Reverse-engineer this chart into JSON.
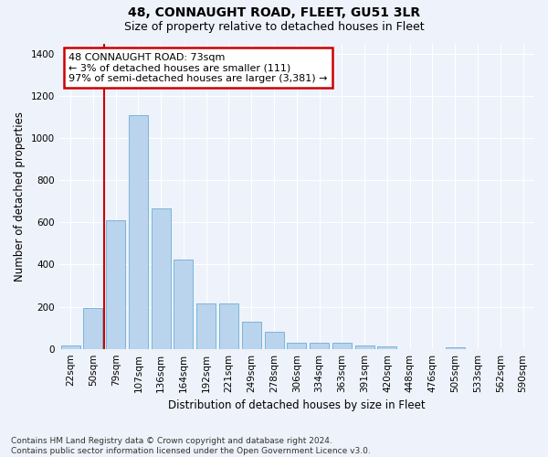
{
  "title": "48, CONNAUGHT ROAD, FLEET, GU51 3LR",
  "subtitle": "Size of property relative to detached houses in Fleet",
  "xlabel": "Distribution of detached houses by size in Fleet",
  "ylabel": "Number of detached properties",
  "categories": [
    "22sqm",
    "50sqm",
    "79sqm",
    "107sqm",
    "136sqm",
    "164sqm",
    "192sqm",
    "221sqm",
    "249sqm",
    "278sqm",
    "306sqm",
    "334sqm",
    "363sqm",
    "391sqm",
    "420sqm",
    "448sqm",
    "476sqm",
    "505sqm",
    "533sqm",
    "562sqm",
    "590sqm"
  ],
  "values": [
    15,
    195,
    610,
    1110,
    665,
    425,
    215,
    215,
    130,
    80,
    30,
    28,
    28,
    15,
    10,
    0,
    0,
    8,
    0,
    0,
    0
  ],
  "bar_color": "#bad4ed",
  "bar_edge_color": "#6aaed6",
  "vline_color": "#cc0000",
  "annotation_text": "48 CONNAUGHT ROAD: 73sqm\n← 3% of detached houses are smaller (111)\n97% of semi-detached houses are larger (3,381) →",
  "annotation_box_color": "#ffffff",
  "annotation_box_edge": "#cc0000",
  "ylim": [
    0,
    1450
  ],
  "yticks": [
    0,
    200,
    400,
    600,
    800,
    1000,
    1200,
    1400
  ],
  "background_color": "#eef2fa",
  "footer": "Contains HM Land Registry data © Crown copyright and database right 2024.\nContains public sector information licensed under the Open Government Licence v3.0.",
  "title_fontsize": 10,
  "subtitle_fontsize": 9,
  "axis_label_fontsize": 8.5,
  "tick_fontsize": 7.5,
  "footer_fontsize": 6.5,
  "annotation_fontsize": 8
}
